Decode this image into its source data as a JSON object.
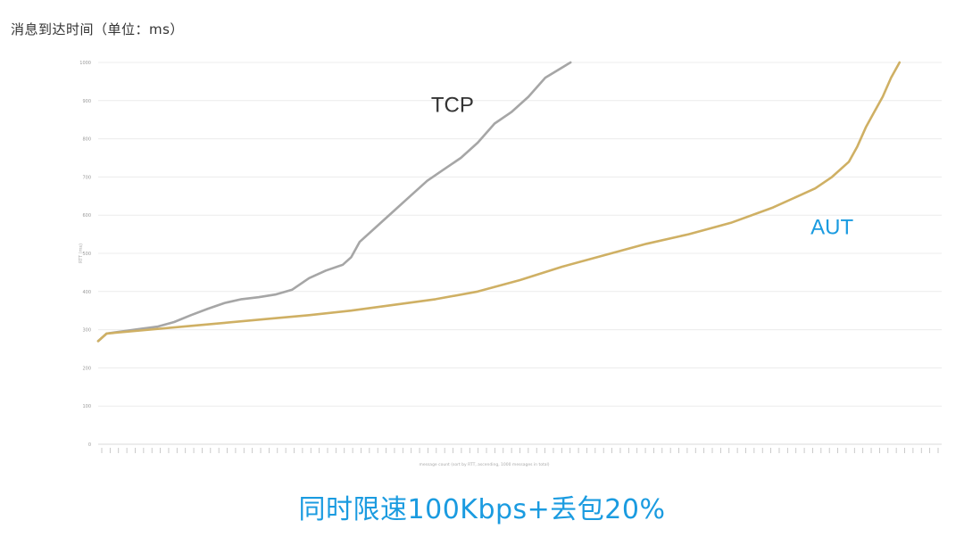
{
  "page": {
    "title": "消息到达时间（单位：ms）",
    "caption": "同时限速100Kbps+丢包20%"
  },
  "chart_data": {
    "type": "line",
    "title": "",
    "xlabel": "message count (sort by RTT, ascending, 1000 messages in total)",
    "ylabel": "RTT (ms)",
    "ylim": [
      0,
      1000
    ],
    "xlim": [
      0,
      1000
    ],
    "yticks": [
      0,
      100,
      200,
      300,
      400,
      500,
      600,
      700,
      800,
      900,
      1000
    ],
    "grid": true,
    "series": [
      {
        "name": "TCP",
        "color": "#a6a6a6",
        "x": [
          0,
          10,
          30,
          50,
          70,
          90,
          110,
          130,
          150,
          170,
          190,
          210,
          230,
          250,
          270,
          290,
          300,
          310,
          330,
          350,
          370,
          390,
          410,
          430,
          450,
          470,
          490,
          510,
          530,
          560
        ],
        "y": [
          270,
          290,
          296,
          302,
          308,
          320,
          338,
          355,
          370,
          380,
          385,
          392,
          405,
          435,
          455,
          470,
          490,
          530,
          570,
          610,
          650,
          690,
          720,
          750,
          790,
          840,
          870,
          910,
          960,
          1000
        ]
      },
      {
        "name": "AUT",
        "color": "#cfb064",
        "x": [
          0,
          10,
          50,
          100,
          150,
          200,
          250,
          300,
          350,
          400,
          450,
          500,
          550,
          600,
          650,
          700,
          750,
          800,
          830,
          850,
          870,
          890,
          900,
          910,
          920,
          930,
          940,
          950
        ],
        "y": [
          270,
          290,
          298,
          308,
          318,
          328,
          338,
          350,
          365,
          380,
          400,
          430,
          465,
          495,
          525,
          550,
          580,
          620,
          650,
          670,
          700,
          740,
          780,
          830,
          870,
          910,
          960,
          1000
        ]
      }
    ],
    "annotations": [
      {
        "text": "TCP",
        "x": 420,
        "y": 870,
        "color": "#333333"
      },
      {
        "text": "AUT",
        "x": 870,
        "y": 550,
        "color": "#1a9be0"
      }
    ]
  }
}
